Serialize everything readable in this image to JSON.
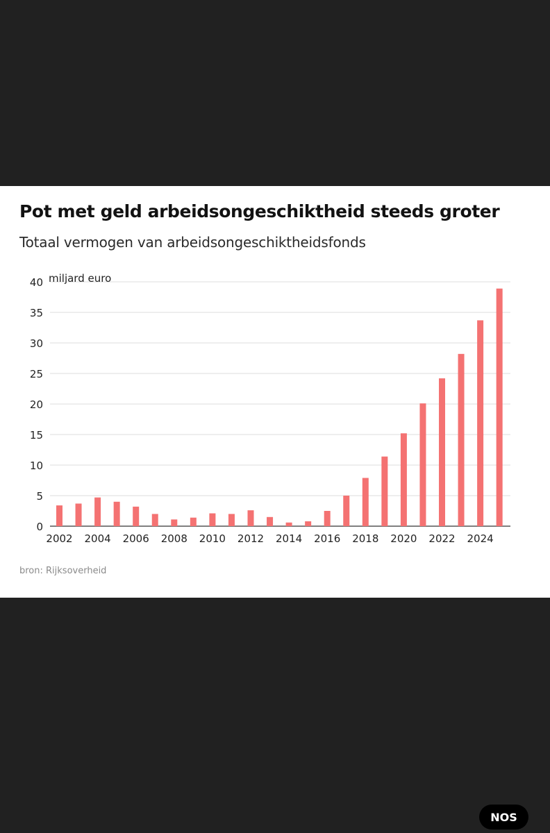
{
  "chart_data": {
    "type": "bar",
    "title": "Pot met geld arbeidsongeschiktheid steeds groter",
    "subtitle": "Totaal vermogen van arbeidsongeschiktheidsfonds",
    "unit_label": "miljard euro",
    "x": [
      2002,
      2003,
      2004,
      2005,
      2006,
      2007,
      2008,
      2009,
      2010,
      2011,
      2012,
      2013,
      2014,
      2015,
      2016,
      2017,
      2018,
      2019,
      2020,
      2021,
      2022,
      2023,
      2024,
      2025
    ],
    "values": [
      3.4,
      3.7,
      4.7,
      4.0,
      3.2,
      2.0,
      1.1,
      1.4,
      2.1,
      2.0,
      2.6,
      1.5,
      0.6,
      0.8,
      2.5,
      5.0,
      7.9,
      11.4,
      15.2,
      20.1,
      24.2,
      28.2,
      33.7,
      38.9
    ],
    "x_tick_labels": [
      "2002",
      "2004",
      "2006",
      "2008",
      "2010",
      "2012",
      "2014",
      "2016",
      "2018",
      "2020",
      "2022",
      "2024"
    ],
    "y_tick_labels": [
      "0",
      "5",
      "10",
      "15",
      "20",
      "25",
      "30",
      "35",
      "40"
    ],
    "ylim": [
      0,
      40
    ],
    "grid": true,
    "bar_color": "#f47272",
    "source": "bron: Rijksoverheid"
  },
  "branding": {
    "logo_text": "NOS"
  }
}
